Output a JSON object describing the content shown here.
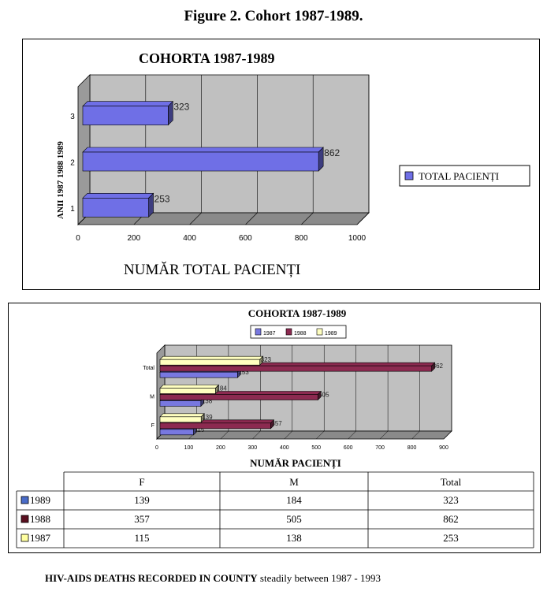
{
  "figure_title": "Figure 2. Cohort 1987-1989.",
  "footer": {
    "bold_part": "HIV-AIDS DEATHS RECORDED IN COUNTY",
    "rest": " steadily between 1987 - 1993"
  },
  "chart_data": [
    {
      "type": "bar",
      "orientation": "horizontal",
      "title": "COHORTA 1987-1989",
      "xlabel": "NUMĂR TOTAL PACIENȚI",
      "ylabel": "ANII 1987  1988  1989",
      "categories": [
        "1",
        "2",
        "3"
      ],
      "series": [
        {
          "name": "TOTAL PACIENȚI",
          "values": [
            253,
            862,
            323
          ]
        }
      ],
      "xlim": [
        0,
        1000
      ],
      "xticks": [
        0,
        200,
        400,
        600,
        800,
        1000
      ],
      "grid": true,
      "legend": "right",
      "colors": {
        "bar": "#6f6fe6",
        "bar_side": "#3a3aa8",
        "wall": "#c0c0c0",
        "wall_dark": "#9a9a9a"
      }
    },
    {
      "type": "bar",
      "orientation": "horizontal",
      "title": "COHORTA 1987-1989",
      "xlabel": "NUMĂR PACIENȚI",
      "categories": [
        "F",
        "M",
        "Total"
      ],
      "series": [
        {
          "name": "1987",
          "values": [
            115,
            138,
            253
          ],
          "color": "#7878e0"
        },
        {
          "name": "1988",
          "values": [
            357,
            505,
            862
          ],
          "color": "#8c2a50"
        },
        {
          "name": "1989",
          "values": [
            139,
            184,
            323
          ],
          "color": "#ffffc0"
        }
      ],
      "xlim": [
        0,
        900
      ],
      "xticks": [
        0,
        100,
        200,
        300,
        400,
        500,
        600,
        700,
        800,
        900
      ],
      "grid": true,
      "legend": "top",
      "table": {
        "headers": [
          "",
          "F",
          "M",
          "Total"
        ],
        "rows": [
          {
            "label": "1989",
            "legend_color": "#4a6cc8",
            "values": [
              "139",
              "184",
              "323"
            ]
          },
          {
            "label": "1988",
            "legend_color": "#5a1020",
            "values": [
              "357",
              "505",
              "862"
            ]
          },
          {
            "label": "1987",
            "legend_color": "#ffffa0",
            "values": [
              "115",
              "138",
              "253"
            ]
          }
        ]
      }
    }
  ]
}
